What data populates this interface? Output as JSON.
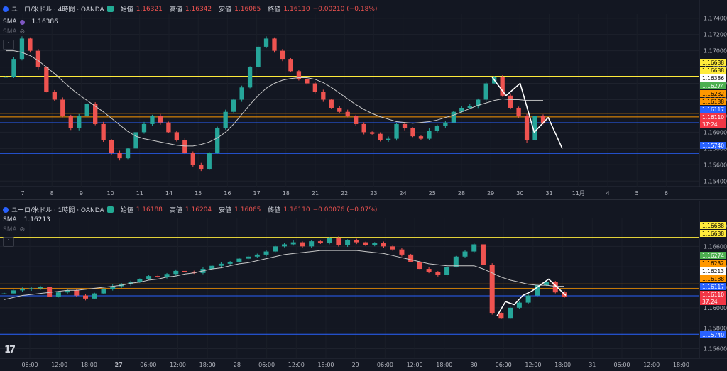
{
  "top_chart": {
    "symbol": "ユーロ/米ドル · 4時間 · OANDA",
    "ohlc": {
      "o_lbl": "始値",
      "o": "1.16321",
      "h_lbl": "高値",
      "h": "1.16342",
      "l_lbl": "安値",
      "l": "1.16065",
      "c_lbl": "終値",
      "c": "1.16110",
      "chg": "−0.00210 (−0.18%)"
    },
    "sma_label": "SMA",
    "sma_value": "1.16386",
    "hidden_label": "SMA",
    "x_labels": [
      "7",
      "8",
      "9",
      "10",
      "11",
      "14",
      "15",
      "16",
      "17",
      "18",
      "21",
      "22",
      "23",
      "24",
      "25",
      "28",
      "29",
      "30",
      "31",
      "11月",
      "4",
      "5",
      "6"
    ],
    "y_ticks": [
      "1.17400",
      "1.17200",
      "1.17000",
      "1.16800",
      "1.16600",
      "1.16400",
      "1.16200",
      "1.16000",
      "1.15800",
      "1.15600",
      "1.15400"
    ],
    "badges": [
      {
        "text": "1.16688",
        "bg": "#ffeb3b",
        "fg": "#000000"
      },
      {
        "text": "1.16688",
        "bg": "#ffeb3b",
        "fg": "#000000"
      },
      {
        "text": "1.16386",
        "bg": "#ffffff",
        "fg": "#000000"
      },
      {
        "text": "1.16274",
        "bg": "#4caf50",
        "fg": "#ffffff"
      },
      {
        "text": "1.16232",
        "bg": "#ff9800",
        "fg": "#000000"
      },
      {
        "text": "1.16188",
        "bg": "#ff9800",
        "fg": "#000000"
      },
      {
        "text": "1.16117",
        "bg": "#2962ff",
        "fg": "#ffffff"
      },
      {
        "text": "1.16110",
        "bg": "#f23645",
        "fg": "#ffffff"
      },
      {
        "text": "37:24",
        "bg": "#f23645",
        "fg": "#ffffff"
      },
      {
        "text": "1.15740",
        "bg": "#2962ff",
        "fg": "#ffffff"
      }
    ]
  },
  "bottom_chart": {
    "symbol": "ユーロ/米ドル · 1時間 · OANDA",
    "ohlc": {
      "o_lbl": "始値",
      "o": "1.16188",
      "h_lbl": "高値",
      "h": "1.16204",
      "l_lbl": "安値",
      "l": "1.16065",
      "c_lbl": "終値",
      "c": "1.16110",
      "chg": "−0.00076 (−0.07%)"
    },
    "sma_label": "SMA",
    "sma_value": "1.16213",
    "hidden_label": "SMA",
    "x_labels": [
      "06:00",
      "12:00",
      "18:00",
      "27",
      "06:00",
      "12:00",
      "18:00",
      "28",
      "06:00",
      "12:00",
      "18:00",
      "29",
      "06:00",
      "12:00",
      "18:00",
      "30",
      "06:00",
      "12:00",
      "18:00",
      "31",
      "06:00",
      "12:00",
      "18:00"
    ],
    "y_ticks": [
      "1.16800",
      "1.16600",
      "1.16400",
      "1.16200",
      "1.16000",
      "1.15800",
      "1.15600"
    ],
    "badges": [
      {
        "text": "1.16688",
        "bg": "#ffeb3b",
        "fg": "#000000"
      },
      {
        "text": "1.16688",
        "bg": "#ffeb3b",
        "fg": "#000000"
      },
      {
        "text": "1.16274",
        "bg": "#4caf50",
        "fg": "#ffffff"
      },
      {
        "text": "1.16232",
        "bg": "#ff9800",
        "fg": "#000000"
      },
      {
        "text": "1.16213",
        "bg": "#ffffff",
        "fg": "#000000"
      },
      {
        "text": "1.16188",
        "bg": "#ff9800",
        "fg": "#000000"
      },
      {
        "text": "1.16117",
        "bg": "#2962ff",
        "fg": "#ffffff"
      },
      {
        "text": "1.16110",
        "bg": "#f23645",
        "fg": "#ffffff"
      },
      {
        "text": "37:24",
        "bg": "#f23645",
        "fg": "#ffffff"
      },
      {
        "text": "1.15740",
        "bg": "#2962ff",
        "fg": "#ffffff"
      }
    ]
  },
  "chart_data": [
    {
      "type": "candlestick",
      "interval": "4h",
      "ylim": [
        1.1535,
        1.1745
      ],
      "hlines": [
        {
          "y": 1.16688,
          "color": "#ffeb3b"
        },
        {
          "y": 1.16232,
          "color": "#ff9800"
        },
        {
          "y": 1.16188,
          "color": "#ff9800"
        },
        {
          "y": 1.16117,
          "color": "#2962ff"
        },
        {
          "y": 1.1574,
          "color": "#2962ff"
        }
      ],
      "colors": {
        "up": "#26a69a",
        "down": "#ef5350",
        "sma": "#c8c8c8"
      },
      "close_path": [
        1.1668,
        1.169,
        1.1715,
        1.17,
        1.168,
        1.165,
        1.164,
        1.162,
        1.1605,
        1.162,
        1.1635,
        1.161,
        1.159,
        1.1575,
        1.1568,
        1.158,
        1.16,
        1.161,
        1.162,
        1.1612,
        1.16,
        1.159,
        1.1575,
        1.156,
        1.1555,
        1.1575,
        1.1605,
        1.1625,
        1.164,
        1.1655,
        1.168,
        1.1705,
        1.1715,
        1.17,
        1.169,
        1.1675,
        1.1665,
        1.166,
        1.165,
        1.164,
        1.163,
        1.1625,
        1.162,
        1.161,
        1.16,
        1.1598,
        1.159,
        1.1592,
        1.161,
        1.1605,
        1.1595,
        1.1592,
        1.1602,
        1.1608,
        1.1612,
        1.1625,
        1.163,
        1.1632,
        1.164,
        1.166,
        1.1668,
        1.1645,
        1.163,
        1.162,
        1.159,
        1.162,
        1.1611
      ],
      "sma_path": [
        1.17,
        1.17,
        1.1698,
        1.1694,
        1.1688,
        1.168,
        1.1672,
        1.1663,
        1.1654,
        1.1646,
        1.1639,
        1.1632,
        1.1625,
        1.1617,
        1.1609,
        1.1601,
        1.1595,
        1.1592,
        1.159,
        1.1588,
        1.1586,
        1.1584,
        1.1583,
        1.1583,
        1.1585,
        1.1588,
        1.1593,
        1.16,
        1.161,
        1.1622,
        1.1634,
        1.1645,
        1.1654,
        1.166,
        1.1664,
        1.1666,
        1.1667,
        1.1667,
        1.1665,
        1.1661,
        1.1655,
        1.1648,
        1.1641,
        1.1634,
        1.1628,
        1.1623,
        1.1619,
        1.1616,
        1.1613,
        1.1612,
        1.1611,
        1.1612,
        1.1613,
        1.1615,
        1.1618,
        1.1621,
        1.1625,
        1.1629,
        1.1633,
        1.1636,
        1.1639,
        1.1641,
        1.164,
        1.164,
        1.1639,
        1.1639,
        1.1639
      ],
      "projection": [
        1.1668,
        1.1645,
        1.166,
        1.16,
        1.1618,
        1.158
      ]
    },
    {
      "type": "candlestick",
      "interval": "1h",
      "ylim": [
        1.1552,
        1.1688
      ],
      "hlines": [
        {
          "y": 1.16688,
          "color": "#ffeb3b"
        },
        {
          "y": 1.16232,
          "color": "#ff9800"
        },
        {
          "y": 1.16188,
          "color": "#ff9800"
        },
        {
          "y": 1.16117,
          "color": "#2962ff"
        },
        {
          "y": 1.1574,
          "color": "#2962ff"
        }
      ],
      "colors": {
        "up": "#26a69a",
        "down": "#ef5350",
        "sma": "#c8c8c8"
      },
      "close_path": [
        1.1614,
        1.1617,
        1.1618,
        1.1619,
        1.162,
        1.1611,
        1.1615,
        1.1617,
        1.1612,
        1.1609,
        1.1614,
        1.1618,
        1.1621,
        1.1623,
        1.1625,
        1.1628,
        1.1631,
        1.163,
        1.1633,
        1.1636,
        1.1635,
        1.1634,
        1.1638,
        1.1641,
        1.1643,
        1.1645,
        1.1648,
        1.165,
        1.1652,
        1.1655,
        1.166,
        1.1662,
        1.1664,
        1.166,
        1.1665,
        1.1663,
        1.1668,
        1.1661,
        1.1666,
        1.1664,
        1.1661,
        1.1663,
        1.166,
        1.1657,
        1.1652,
        1.1645,
        1.1638,
        1.1635,
        1.1632,
        1.164,
        1.165,
        1.1655,
        1.1662,
        1.1642,
        1.1595,
        1.159,
        1.16,
        1.1605,
        1.1612,
        1.1622,
        1.1625,
        1.1615,
        1.1611
      ],
      "sma_path": [
        1.1608,
        1.161,
        1.1612,
        1.1613,
        1.1614,
        1.1615,
        1.1616,
        1.1617,
        1.1617,
        1.1618,
        1.1619,
        1.162,
        1.1621,
        1.1622,
        1.1624,
        1.1625,
        1.1627,
        1.1628,
        1.163,
        1.1631,
        1.1633,
        1.1634,
        1.1636,
        1.1638,
        1.1639,
        1.1641,
        1.1643,
        1.1644,
        1.1646,
        1.1648,
        1.165,
        1.1652,
        1.1653,
        1.1654,
        1.1655,
        1.1656,
        1.1656,
        1.1656,
        1.1656,
        1.1656,
        1.1655,
        1.1654,
        1.1653,
        1.1651,
        1.1649,
        1.1647,
        1.1645,
        1.1643,
        1.1642,
        1.1641,
        1.1641,
        1.1641,
        1.1641,
        1.1638,
        1.1634,
        1.163,
        1.1627,
        1.1625,
        1.1623,
        1.1622,
        1.1622,
        1.1621,
        1.1621
      ],
      "projection": [
        1.1592,
        1.1606,
        1.1603,
        1.1612,
        1.1616,
        1.1622,
        1.1628,
        1.162,
        1.1612
      ]
    }
  ]
}
